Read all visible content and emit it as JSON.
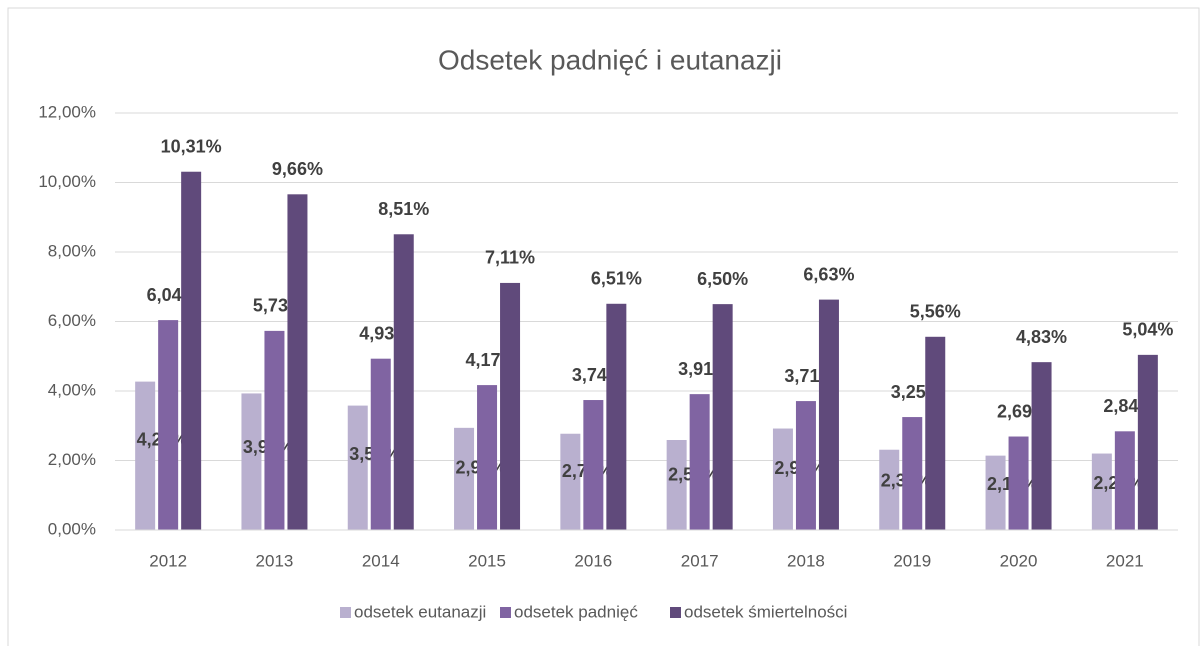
{
  "chart_data": {
    "type": "bar",
    "title": "Odsetek padnięć i eutanazji",
    "categories": [
      "2012",
      "2013",
      "2014",
      "2015",
      "2016",
      "2017",
      "2018",
      "2019",
      "2020",
      "2021"
    ],
    "series": [
      {
        "name": "odsetek eutanazji",
        "color": "#b9b0cf",
        "values": [
          4.27,
          3.93,
          3.58,
          2.94,
          2.77,
          2.59,
          2.92,
          2.31,
          2.14,
          2.2
        ],
        "value_labels": [
          "4,27%",
          "3,93%",
          "3,58%",
          "2,94%",
          "2,77%",
          "2,59%",
          "2,92%",
          "2,31%",
          "2,14%",
          "2,20%"
        ]
      },
      {
        "name": "odsetek padnięć",
        "color": "#8064a2",
        "values": [
          6.04,
          5.73,
          4.93,
          4.17,
          3.74,
          3.91,
          3.71,
          3.25,
          2.69,
          2.84
        ],
        "value_labels": [
          "6,04%",
          "5,73%",
          "4,93%",
          "4,17%",
          "3,74%",
          "3,91%",
          "3,71%",
          "3,25%",
          "2,69%",
          "2,84%"
        ]
      },
      {
        "name": "odsetek śmiertelności",
        "color": "#604a7b",
        "values": [
          10.31,
          9.66,
          8.51,
          7.11,
          6.51,
          6.5,
          6.63,
          5.56,
          4.83,
          5.04
        ],
        "value_labels": [
          "10,31%",
          "9,66%",
          "8,51%",
          "7,11%",
          "6,51%",
          "6,50%",
          "6,63%",
          "5,56%",
          "4,83%",
          "5,04%"
        ]
      }
    ],
    "ylim": [
      0,
      12
    ],
    "yticks": [
      {
        "value": 0,
        "label": "0,00%"
      },
      {
        "value": 2,
        "label": "2,00%"
      },
      {
        "value": 4,
        "label": "4,00%"
      },
      {
        "value": 6,
        "label": "6,00%"
      },
      {
        "value": 8,
        "label": "8,00%"
      },
      {
        "value": 10,
        "label": "10,00%"
      },
      {
        "value": 12,
        "label": "12,00%"
      }
    ],
    "grid": true,
    "legend": "bottom"
  }
}
